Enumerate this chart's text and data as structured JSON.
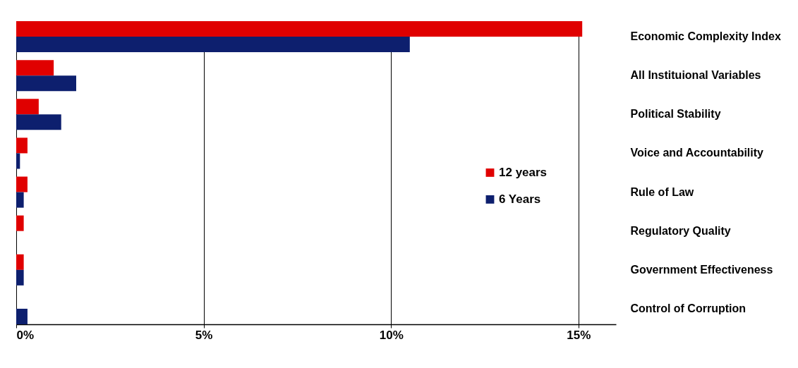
{
  "chart_data": {
    "type": "bar",
    "orientation": "horizontal",
    "categories": [
      "Economic Complexity Index",
      "All Instituional Variables",
      "Political Stability",
      "Voice and Accountability",
      "Rule of Law",
      "Regulatory Quality",
      "Government Effectiveness",
      "Control of Corruption"
    ],
    "series": [
      {
        "name": "12 years",
        "color": "#e00000",
        "values": [
          15.1,
          1.0,
          0.6,
          0.3,
          0.3,
          0.2,
          0.2,
          0
        ]
      },
      {
        "name": "6 Years",
        "color": "#0d1f6e",
        "values": [
          10.5,
          1.6,
          1.2,
          0.1,
          0.2,
          0,
          0.2,
          0.3
        ]
      }
    ],
    "xlim": [
      0,
      16
    ],
    "xticks": [
      {
        "value": 0,
        "label": "0%"
      },
      {
        "value": 5,
        "label": "5%"
      },
      {
        "value": 10,
        "label": "10%"
      },
      {
        "value": 15,
        "label": "15%"
      }
    ],
    "grid": "x",
    "legend": "right"
  }
}
